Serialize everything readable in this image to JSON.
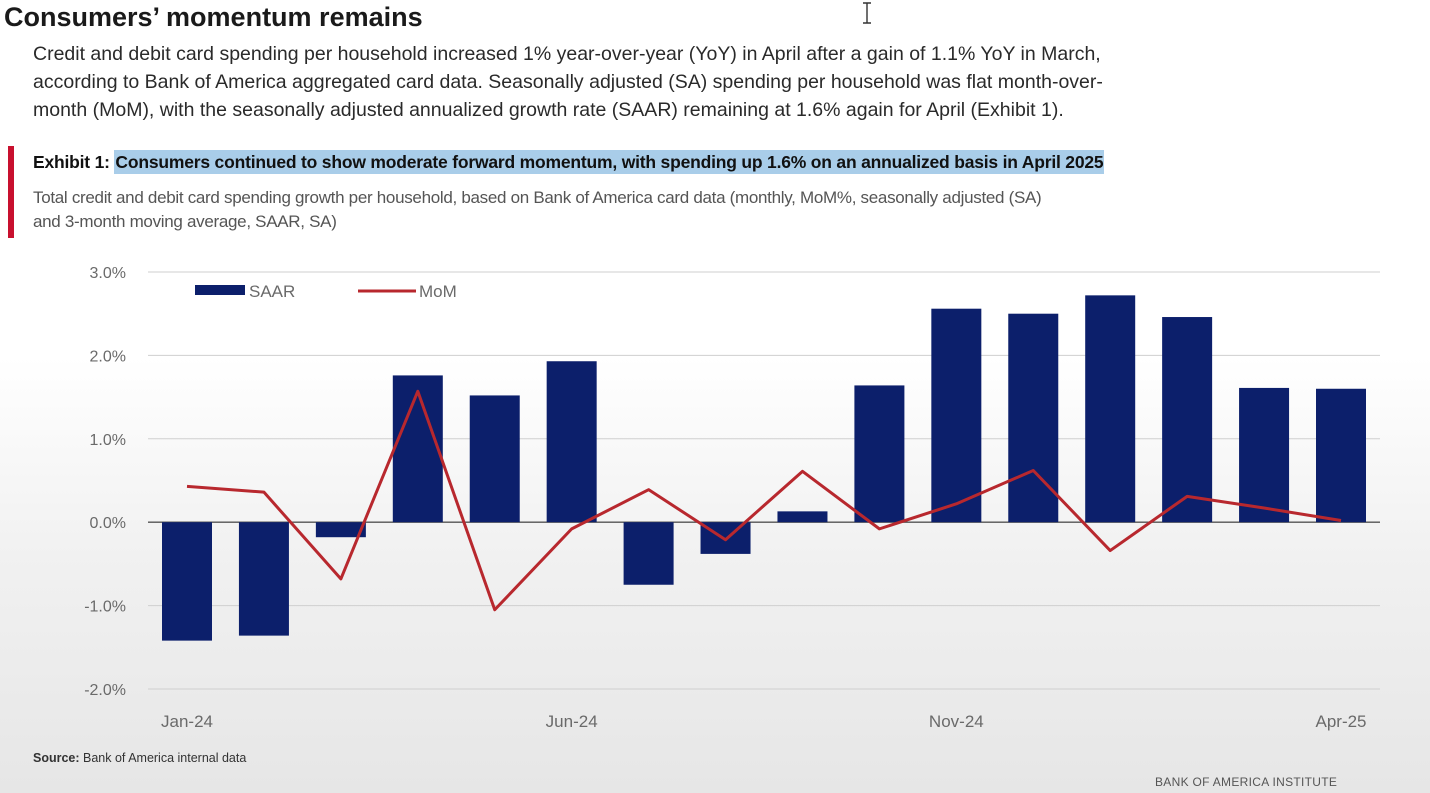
{
  "header": {
    "title": "Consumers’ momentum remains",
    "paragraph_lines": [
      "Credit and debit card spending per household increased 1% year-over-year (YoY) in April after a gain of 1.1% YoY in March,",
      "according to Bank of America aggregated card data. Seasonally adjusted (SA) spending per household was flat month-over-",
      "month (MoM), with the seasonally adjusted annualized growth rate (SAAR) remaining at 1.6% again for April (Exhibit 1)."
    ]
  },
  "exhibit": {
    "label": "Exhibit 1: ",
    "title": "Consumers continued to show moderate forward momentum, with spending up 1.6% on an annualized basis in April 2025",
    "subtitle_lines": [
      "Total credit and debit card spending growth per household, based on Bank of America card data (monthly, MoM%, seasonally adjusted (SA)",
      "and 3-month moving average, SAAR, SA)"
    ]
  },
  "chart_data": {
    "type": "bar",
    "categories": [
      "Jan-24",
      "Feb-24",
      "Mar-24",
      "Apr-24",
      "May-24",
      "Jun-24",
      "Jul-24",
      "Aug-24",
      "Sep-24",
      "Oct-24",
      "Nov-24",
      "Dec-24",
      "Jan-25",
      "Feb-25",
      "Mar-25",
      "Apr-25"
    ],
    "x_tick_labels": [
      "Jan-24",
      "Jun-24",
      "Nov-24",
      "Apr-25"
    ],
    "x_tick_indices": [
      0,
      5,
      10,
      15
    ],
    "y_ticks": [
      3.0,
      2.0,
      1.0,
      0.0,
      -1.0,
      -2.0
    ],
    "y_tick_labels": [
      "3.0%",
      "2.0%",
      "1.0%",
      "0.0%",
      "-1.0%",
      "-2.0%"
    ],
    "ylim": [
      -2.0,
      3.0
    ],
    "grid": true,
    "legend_position": "top-left",
    "series": [
      {
        "name": "SAAR",
        "type": "bar",
        "color": "#0c1f6b",
        "values": [
          -1.42,
          -1.36,
          -0.18,
          1.76,
          1.52,
          1.93,
          -0.75,
          -0.38,
          0.13,
          1.64,
          2.56,
          2.5,
          2.72,
          2.46,
          1.61,
          1.6
        ]
      },
      {
        "name": "MoM",
        "type": "line",
        "color": "#b8282e",
        "values": [
          0.43,
          0.36,
          -0.68,
          1.57,
          -1.05,
          -0.08,
          0.39,
          -0.21,
          0.61,
          -0.08,
          0.22,
          0.62,
          -0.34,
          0.31,
          0.17,
          0.02
        ]
      }
    ]
  },
  "footer": {
    "source_label": "Source:",
    "source_text": " Bank of America internal data",
    "brand": "BANK OF AMERICA INSTITUTE"
  }
}
